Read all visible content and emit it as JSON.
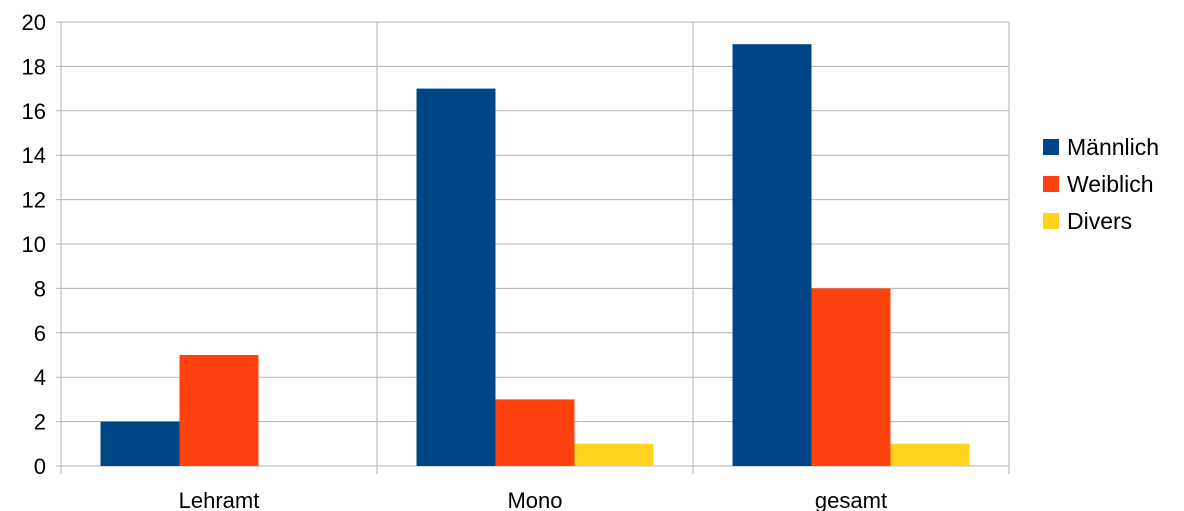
{
  "chart_data": {
    "type": "bar",
    "title": "",
    "xlabel": "",
    "ylabel": "",
    "categories": [
      "Lehramt",
      "Mono",
      "gesamt"
    ],
    "series": [
      {
        "name": "Männlich",
        "color": "#004586",
        "values": [
          2,
          17,
          19
        ]
      },
      {
        "name": "Weiblich",
        "color": "#FF420E",
        "values": [
          5,
          3,
          8
        ]
      },
      {
        "name": "Divers",
        "color": "#FFD320",
        "values": [
          0,
          1,
          1
        ]
      }
    ],
    "ylim": [
      0,
      20
    ],
    "yticks": [
      "0",
      "2",
      "4",
      "6",
      "8",
      "10",
      "12",
      "14",
      "16",
      "18",
      "20"
    ],
    "grid": true,
    "legend_position": "right"
  }
}
